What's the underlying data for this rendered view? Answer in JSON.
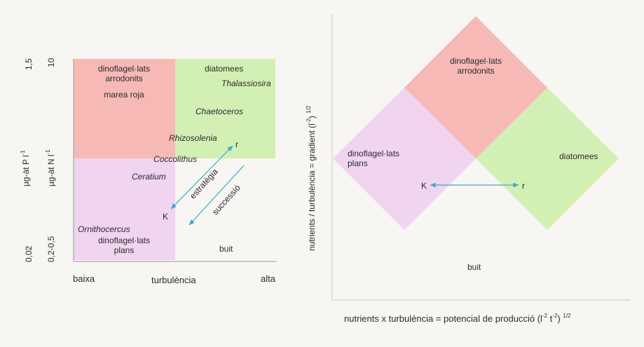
{
  "colors": {
    "red_region": "#f7b9b6",
    "green_region": "#d3f0b4",
    "pink_region": "#f0d4f0",
    "arrow": "#3aa8cf",
    "axis": "#9a9a9a"
  },
  "left": {
    "axis_p_label": "µg-àt P l",
    "axis_p_exp": "-1",
    "axis_n_label": "µg-àt N l",
    "axis_n_exp": "-1",
    "p_high": "1,5",
    "p_low": "0,02",
    "n_high": "10",
    "n_low": "0,2-0,5",
    "x_low": "baixa",
    "x_mid": "turbulència",
    "x_high": "alta",
    "red_title": "dinoflagel·lats\narrodonits",
    "red_sub": "marea roja",
    "green_title": "diatomees",
    "thalassiosira": "Thalassiosira",
    "chaetoceros": "Chaetoceros",
    "rhizosolenia": "Rhizosolenia",
    "coccolithus": "Coccolithus",
    "ceratium": "Ceratium",
    "estrategia": "estratègia",
    "successio": "successió",
    "k": "K",
    "r": "r",
    "ornithocercus": "Ornithocercus",
    "pink_title": "dinoflagel·lats\nplans",
    "buit": "buit"
  },
  "right": {
    "y_label": "nutrients / turbulència = gradient (l",
    "y_exp": "-2",
    "y_tail": ")",
    "y_pow": "1/2",
    "top_label": "dinoflagel·lats\narrodonits",
    "left_label": "dinoflagel·lats\nplans",
    "right_label": "diatomees",
    "k": "K",
    "r": "r",
    "buit": "buit",
    "x_label": "nutrients x turbulència = potencial de producció (l",
    "x_exp1": "-2",
    "x_mid": " t",
    "x_exp2": "-2",
    "x_tail": ")",
    "x_pow": "1/2"
  }
}
